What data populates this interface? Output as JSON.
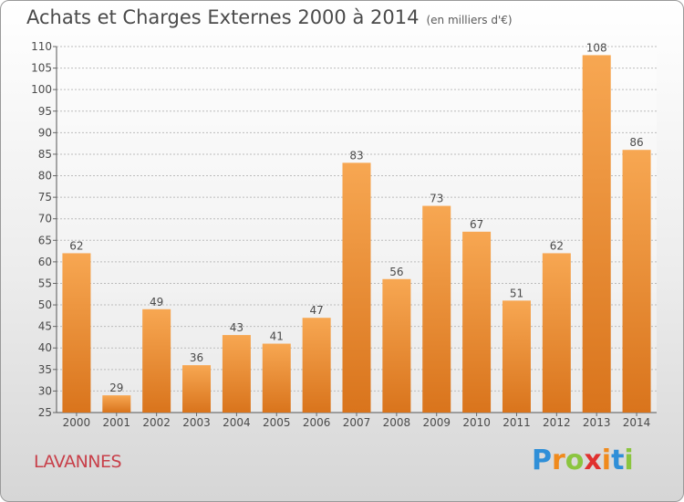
{
  "header": {
    "title": "Achats et Charges Externes 2000 à 2014",
    "subtitle": "(en milliers d'€)"
  },
  "commune": "LAVANNES",
  "logo": {
    "text": "Proxiti",
    "letters": [
      "P",
      "r",
      "o",
      "x",
      "i",
      "t",
      "i"
    ],
    "colors": [
      "#2f8fd8",
      "#f08a1c",
      "#8bc53f",
      "#e0312f",
      "#f08a1c",
      "#2f8fd8",
      "#8bc53f"
    ]
  },
  "colors": {
    "bar_light": "#f7a752",
    "bar_dark": "#d9741c",
    "text": "#4a4a4a"
  },
  "chart_data": {
    "type": "bar",
    "title": "Achats et Charges Externes 2000 à 2014",
    "subtitle": "(en milliers d'€)",
    "categories": [
      "2000",
      "2001",
      "2002",
      "2003",
      "2004",
      "2005",
      "2006",
      "2007",
      "2008",
      "2009",
      "2010",
      "2011",
      "2012",
      "2013",
      "2014"
    ],
    "values": [
      62,
      29,
      49,
      36,
      43,
      41,
      47,
      83,
      56,
      73,
      67,
      51,
      62,
      108,
      86
    ],
    "ylim": [
      25,
      110
    ],
    "yticks": [
      25,
      30,
      35,
      40,
      45,
      50,
      55,
      60,
      65,
      70,
      75,
      80,
      85,
      90,
      95,
      100,
      105,
      110
    ],
    "grid": true,
    "data_labels": true
  }
}
